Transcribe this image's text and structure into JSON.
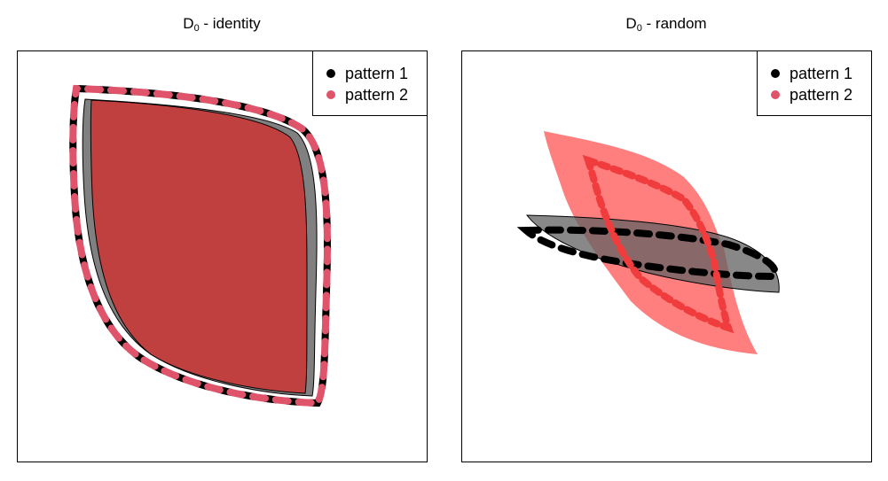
{
  "panels": [
    {
      "title_main": "D",
      "title_sub": "0",
      "title_rest": " - identity",
      "legend": [
        {
          "label": "pattern 1",
          "color": "#000000"
        },
        {
          "label": "pattern 2",
          "color": "#DF536B"
        }
      ]
    },
    {
      "title_main": "D",
      "title_sub": "0",
      "title_rest": " - random",
      "legend": [
        {
          "label": "pattern 1",
          "color": "#000000"
        },
        {
          "label": "pattern 2",
          "color": "#DF536B"
        }
      ]
    }
  ],
  "colors": {
    "pattern1_fill": "#808080",
    "pattern2_fill_identity": "#C04040",
    "pattern2_fill_random": "#FF7F7F",
    "pattern2_dash_random": "#F03C3C"
  }
}
